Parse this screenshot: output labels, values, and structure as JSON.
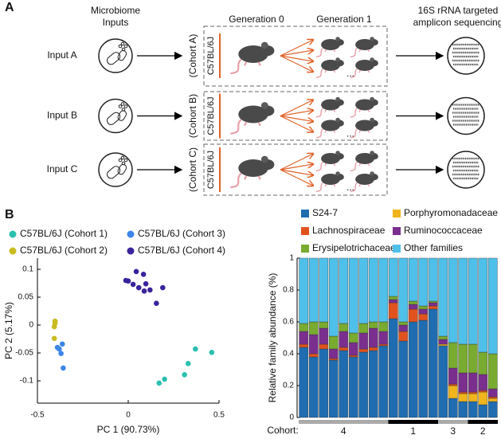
{
  "diagram": {
    "label": "A",
    "inputs_header": [
      "Microbiome",
      "Inputs"
    ],
    "generation_0": "Generation 0",
    "generation_1": "Generation 1",
    "sequencing_header": [
      "16S rRNA targeted",
      "amplicon sequencing"
    ],
    "rows": [
      {
        "input": "Input A",
        "cohort": "(Cohort A)",
        "strain": "C57BL/6J"
      },
      {
        "input": "Input B",
        "cohort": "(Cohort B)",
        "strain": "C57BL/6J"
      },
      {
        "input": "Input C",
        "cohort": "(Cohort C)",
        "strain": "C57BL/6J"
      }
    ],
    "ellipsis": "..."
  },
  "panel_b_label": "B",
  "chart_data": [
    {
      "type": "scatter",
      "xlabel": "PC 1 (90.73%)",
      "ylabel": "PC 2 (5.17%)",
      "xlim": [
        -0.5,
        0.5
      ],
      "xticks": [
        -0.5,
        0,
        0.5
      ],
      "ylim": [
        -0.14,
        0.12
      ],
      "yticks": [
        -0.1,
        -0.05,
        0,
        0.05,
        0.1
      ],
      "series": [
        {
          "name": "C57BL/6J (Cohort 1)",
          "color": "#2bbfae",
          "x": [
            0.37,
            0.46,
            0.33,
            0.31,
            0.2,
            0.17
          ],
          "values": [
            -0.043,
            -0.049,
            -0.069,
            -0.089,
            -0.097,
            -0.104
          ]
        },
        {
          "name": "C57BL/6J (Cohort 2)",
          "color": "#c9bb22",
          "x": [
            -0.403,
            -0.403,
            -0.407,
            -0.407
          ],
          "values": [
            0.007,
            0.003,
            -0.003,
            -0.024
          ]
        },
        {
          "name": "C57BL/6J (Cohort 3)",
          "color": "#3d86e8",
          "x": [
            -0.363,
            -0.39,
            -0.38,
            -0.37,
            -0.358
          ],
          "values": [
            -0.034,
            -0.04,
            -0.043,
            -0.051,
            -0.077
          ]
        },
        {
          "name": "C57BL/6J (Cohort 4)",
          "color": "#3a239c",
          "x": [
            0.044,
            -0.013,
            0.084,
            0,
            0.027,
            0.097,
            0.058,
            0.19,
            0.12,
            0.088,
            0.155
          ],
          "values": [
            0.096,
            0.08,
            0.091,
            0.079,
            0.073,
            0.074,
            0.067,
            0.067,
            0.063,
            0.061,
            0.039
          ]
        }
      ]
    },
    {
      "type": "stacked_bar",
      "ylabel": "Relative family abundance (%)",
      "ylim": [
        0,
        1
      ],
      "yticks": [
        0,
        0.2,
        0.4,
        0.6,
        0.8,
        1
      ],
      "group_title": "Cohort:",
      "groups": [
        {
          "label": "4",
          "count": 9,
          "color": "#aaaaaa"
        },
        {
          "label": "1",
          "count": 5,
          "color": "#000000"
        },
        {
          "label": "3",
          "count": 3,
          "color": "#aaaaaa"
        },
        {
          "label": "2",
          "count": 3,
          "color": "#000000"
        }
      ],
      "series": [
        {
          "name": "S24-7",
          "color": "#1f6db0",
          "values": [
            0.44,
            0.38,
            0.43,
            0.36,
            0.42,
            0.38,
            0.41,
            0.42,
            0.45,
            0.62,
            0.48,
            0.6,
            0.61,
            0.68,
            0.45,
            0.12,
            0.1,
            0.1,
            0.08,
            0.1
          ]
        },
        {
          "name": "Porphyromonadaceae",
          "color": "#f0b41c",
          "values": [
            0,
            0,
            0,
            0,
            0,
            0,
            0,
            0,
            0,
            0,
            0,
            0,
            0,
            0,
            0.01,
            0.08,
            0.05,
            0.05,
            0.08,
            0.02
          ]
        },
        {
          "name": "Lachnospiraceae",
          "color": "#e0531f",
          "values": [
            0.02,
            0.02,
            0.03,
            0.01,
            0.02,
            0.01,
            0.02,
            0.02,
            0.01,
            0.1,
            0.06,
            0.08,
            0.04,
            0.02,
            0,
            0.01,
            0.01,
            0.01,
            0.01,
            0.01
          ]
        },
        {
          "name": "Ruminococcaceae",
          "color": "#7a2f8e",
          "values": [
            0.08,
            0.12,
            0.1,
            0.06,
            0.1,
            0.08,
            0.1,
            0.12,
            0.08,
            0.02,
            0.04,
            0.03,
            0.03,
            0.02,
            0.03,
            0.1,
            0.12,
            0.12,
            0.1,
            0.05
          ]
        },
        {
          "name": "Erysipelotrichaceae",
          "color": "#78ab2f",
          "values": [
            0.05,
            0.08,
            0.04,
            0.08,
            0.05,
            0.06,
            0.06,
            0.04,
            0.06,
            0.02,
            0.02,
            0.02,
            0.02,
            0.01,
            0.02,
            0.16,
            0.18,
            0.18,
            0.14,
            0.22
          ]
        },
        {
          "name": "Other families",
          "color": "#4fc0ea",
          "values": [
            0.41,
            0.4,
            0.4,
            0.49,
            0.41,
            0.47,
            0.41,
            0.4,
            0.4,
            0.24,
            0.4,
            0.27,
            0.3,
            0.27,
            0.49,
            0.53,
            0.54,
            0.54,
            0.59,
            0.6
          ]
        }
      ]
    }
  ]
}
